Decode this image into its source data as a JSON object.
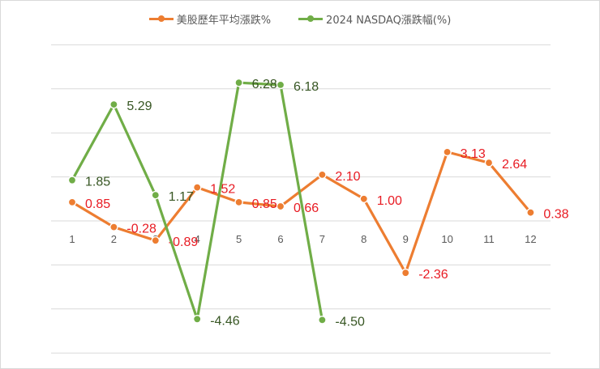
{
  "chart_data": {
    "type": "line",
    "categories": [
      "1",
      "2",
      "3",
      "4",
      "5",
      "6",
      "7",
      "8",
      "9",
      "10",
      "11",
      "12"
    ],
    "series": [
      {
        "name": "美股歷年平均漲跌%",
        "color": "#ED7D31",
        "label_color": "#E81B23",
        "values": [
          0.85,
          -0.28,
          -0.89,
          1.52,
          0.85,
          0.66,
          2.1,
          1.0,
          -2.36,
          3.13,
          2.64,
          0.38
        ],
        "labels": [
          "0.85",
          "-0.28",
          "-0.89",
          "1.52",
          "0.85",
          "0.66",
          "2.10",
          "1.00",
          "-2.36",
          "3.13",
          "2.64",
          "0.38"
        ]
      },
      {
        "name": "2024 NASDAQ漲跌幅(%)",
        "color": "#70AD47",
        "label_color": "#375623",
        "values": [
          1.85,
          5.29,
          1.17,
          -4.46,
          6.28,
          6.18,
          -4.5,
          null,
          null,
          null,
          null,
          null
        ],
        "labels": [
          "1.85",
          "5.29",
          "1.17",
          "-4.46",
          "6.28",
          "6.18",
          "-4.50",
          null,
          null,
          null,
          null,
          null
        ]
      }
    ],
    "ylim": [
      -8,
      8
    ],
    "y_gridline_step": 2,
    "grid": "horizontal",
    "legend_position": "top-center"
  }
}
